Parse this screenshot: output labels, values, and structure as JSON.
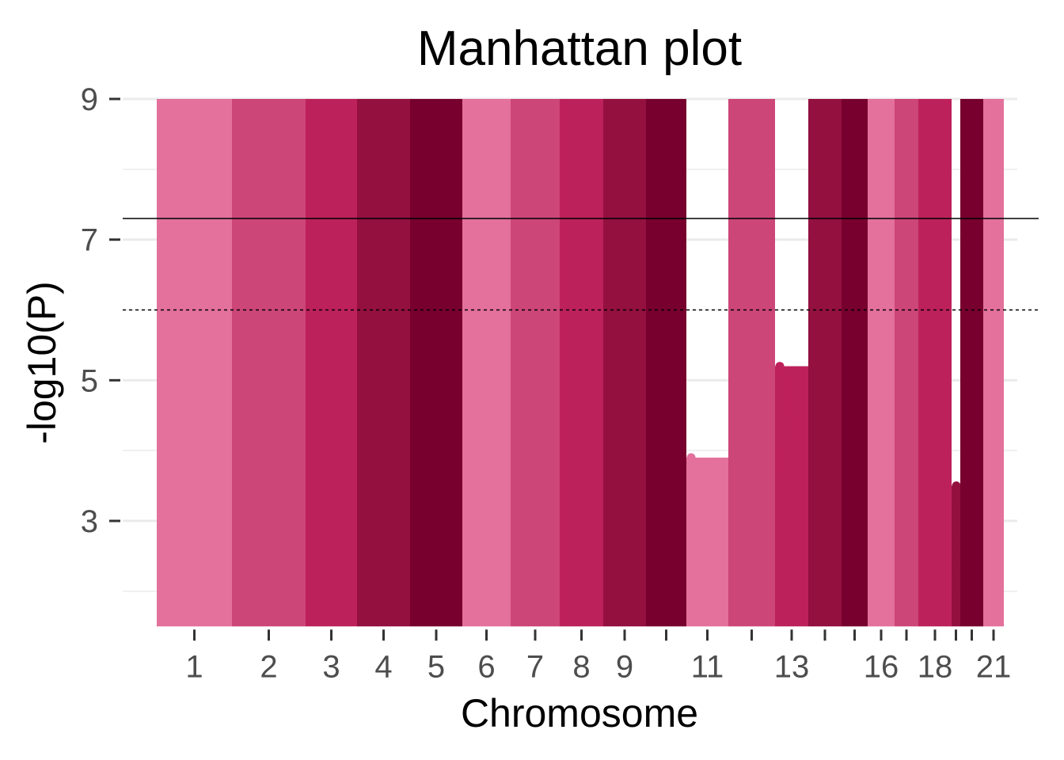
{
  "chart_data": {
    "type": "scatter",
    "title": "Manhattan plot",
    "xlabel": "Chromosome",
    "ylabel": "-log10(P)",
    "ylim": [
      1.5,
      9
    ],
    "y_ticks": [
      3,
      5,
      7,
      9
    ],
    "grid": "horizontal",
    "legend": "none",
    "x_tick_labels": [
      "1",
      "2",
      "3",
      "4",
      "5",
      "6",
      "7",
      "8",
      "9",
      "11",
      "13",
      "16",
      "18",
      "21"
    ],
    "thresholds": [
      {
        "y": 7.3,
        "style": "solid"
      },
      {
        "y": 6.0,
        "style": "dashed"
      }
    ],
    "colors": [
      "#e3719c",
      "#cc4677",
      "#bd215b",
      "#93103f",
      "#78002e"
    ],
    "series": [
      {
        "chromosome": 1,
        "max_y": 9,
        "color_index": 0
      },
      {
        "chromosome": 2,
        "max_y": 9,
        "color_index": 1
      },
      {
        "chromosome": 3,
        "max_y": 9,
        "color_index": 2
      },
      {
        "chromosome": 4,
        "max_y": 9,
        "color_index": 3
      },
      {
        "chromosome": 5,
        "max_y": 9,
        "color_index": 4
      },
      {
        "chromosome": 6,
        "max_y": 9,
        "color_index": 0
      },
      {
        "chromosome": 7,
        "max_y": 9,
        "color_index": 1
      },
      {
        "chromosome": 8,
        "max_y": 9,
        "color_index": 2
      },
      {
        "chromosome": 9,
        "max_y": 9,
        "color_index": 3
      },
      {
        "chromosome": 10,
        "max_y": 9,
        "color_index": 4
      },
      {
        "chromosome": 11,
        "max_y": 3.9,
        "color_index": 0
      },
      {
        "chromosome": 12,
        "max_y": 9,
        "color_index": 1
      },
      {
        "chromosome": 13,
        "max_y": 5.2,
        "color_index": 2
      },
      {
        "chromosome": 14,
        "max_y": 9,
        "color_index": 3
      },
      {
        "chromosome": 15,
        "max_y": 9,
        "color_index": 4
      },
      {
        "chromosome": 16,
        "max_y": 9,
        "color_index": 0
      },
      {
        "chromosome": 17,
        "max_y": 9,
        "color_index": 1
      },
      {
        "chromosome": 18,
        "max_y": 9,
        "color_index": 2
      },
      {
        "chromosome": 19,
        "max_y": 3.5,
        "color_index": 3
      },
      {
        "chromosome": 20,
        "max_y": 9,
        "color_index": 4
      },
      {
        "chromosome": 21,
        "max_y": 9,
        "color_index": 0
      }
    ]
  }
}
